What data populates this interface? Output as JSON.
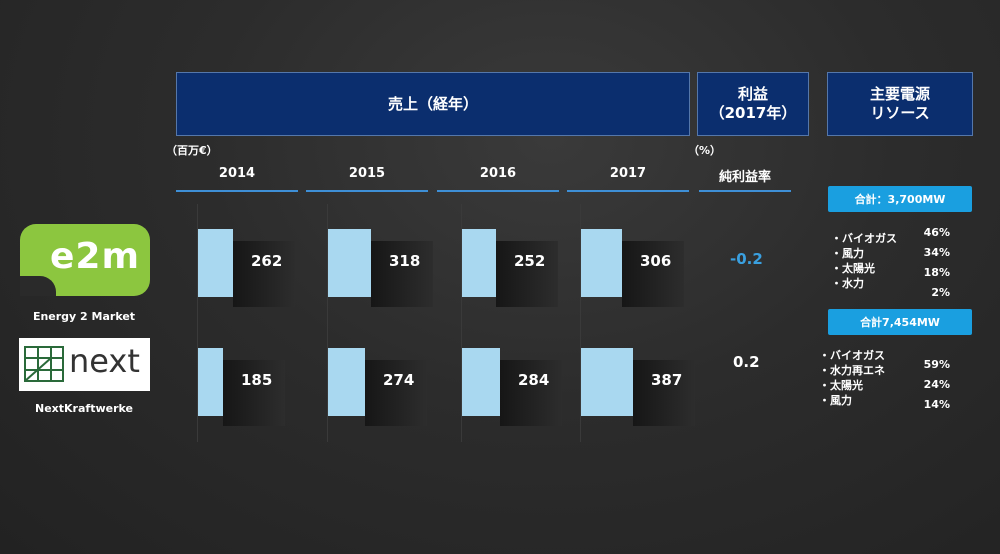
{
  "headers": {
    "sales": "売上（経年）",
    "profit_line1": "利益",
    "profit_line2": "（2017年）",
    "resources_line1": "主要電源",
    "resources_line2": "リソース"
  },
  "units": {
    "sales": "（百万€）",
    "profit": "（%）"
  },
  "years": [
    "2014",
    "2015",
    "2016",
    "2017"
  ],
  "profit_column_label": "純利益率",
  "companies": [
    {
      "name": "Energy 2 Market",
      "logo_text": "e2m",
      "profit": "-0.2",
      "resources_total": "合計：3,700MW",
      "resources": [
        {
          "label": "バイオガス",
          "pct": "46%"
        },
        {
          "label": "風力",
          "pct": "34%"
        },
        {
          "label": "太陽光",
          "pct": "18%"
        },
        {
          "label": "水力",
          "pct": "2%"
        }
      ]
    },
    {
      "name": "NextKraftwerke",
      "logo_text": "next",
      "profit": "0.2",
      "resources_total": "合計7,454MW",
      "resources": [
        {
          "label": "バイオガス",
          "pct": "59%"
        },
        {
          "label": "水力再エネ",
          "pct": "24%"
        },
        {
          "label": "太陽光",
          "pct": "14%"
        },
        {
          "label": "風力",
          "pct": ""
        }
      ]
    }
  ],
  "colors": {
    "header_bg": "#0b2e6e",
    "bar": "#a9d8f0",
    "accent": "#1a9fe0",
    "negative": "#3aa0e0"
  },
  "chart_data": {
    "type": "bar",
    "categories": [
      "2014",
      "2015",
      "2016",
      "2017"
    ],
    "series": [
      {
        "name": "Energy 2 Market",
        "values": [
          262,
          318,
          252,
          306
        ]
      },
      {
        "name": "NextKraftwerke",
        "values": [
          185,
          274,
          284,
          387
        ]
      }
    ],
    "title": "売上（経年）",
    "ylabel": "（百万€）"
  }
}
